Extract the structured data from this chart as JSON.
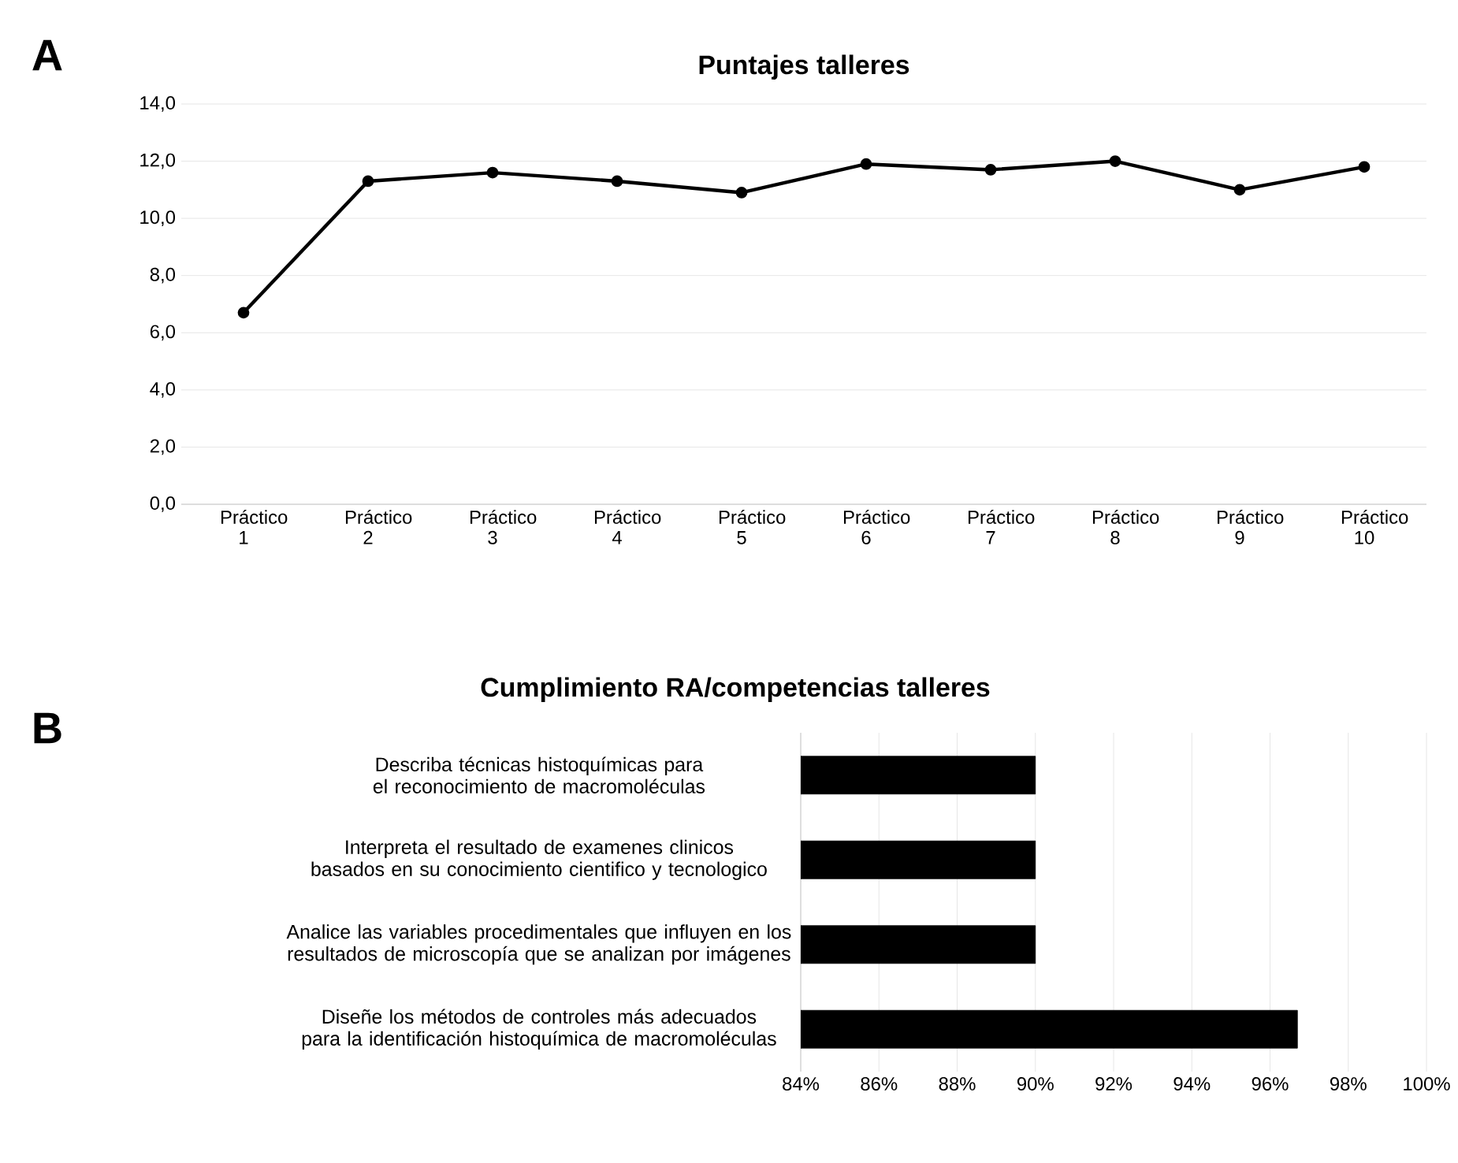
{
  "chart_data": [
    {
      "type": "line",
      "title": "Puntajes talleres",
      "annotations": [
        "A"
      ],
      "categories": [
        "Práctico 1",
        "Práctico 2",
        "Práctico 3",
        "Práctico 4",
        "Práctico 5",
        "Práctico 6",
        "Práctico 7",
        "Práctico 8",
        "Práctico 9",
        "Práctico 10"
      ],
      "series": [
        {
          "color": "#000000",
          "values": [
            6.7,
            11.3,
            11.6,
            11.3,
            10.9,
            11.9,
            11.7,
            12.0,
            11.0,
            11.8
          ]
        }
      ],
      "ylim": [
        0,
        14
      ],
      "yticks": [
        {
          "value": 0,
          "label": "0,0"
        },
        {
          "value": 2,
          "label": "2,0"
        },
        {
          "value": 4,
          "label": "4,0"
        },
        {
          "value": 6,
          "label": "6,0"
        },
        {
          "value": 8,
          "label": "8,0"
        },
        {
          "value": 10,
          "label": "10,0"
        },
        {
          "value": 12,
          "label": "12,0"
        },
        {
          "value": 14,
          "label": "14,0"
        }
      ],
      "grid": "y",
      "marker": "circle",
      "line_style": "solid"
    },
    {
      "type": "bar",
      "orientation": "horizontal",
      "title": "Cumplimiento RA/competencias talleres",
      "annotations": [
        "B"
      ],
      "categories": [
        "Describa técnicas histoquímicas para el reconocimiento de macromoléculas",
        "Interpreta el resultado de examenes clinicos basados en su conocimiento cientifico y tecnologico",
        "Analice las variables procedimentales que influyen en los resultados de microscopía que se analizan por imágenes",
        "Diseñe los métodos de controles más adecuados para la identificación histoquímica de macromoléculas"
      ],
      "series": [
        {
          "color": "#000000",
          "values": [
            90,
            90,
            90,
            96.7
          ]
        }
      ],
      "xlim": [
        84,
        100
      ],
      "xticks": [
        {
          "value": 84,
          "label": "84%"
        },
        {
          "value": 86,
          "label": "86%"
        },
        {
          "value": 88,
          "label": "88%"
        },
        {
          "value": 90,
          "label": "90%"
        },
        {
          "value": 92,
          "label": "92%"
        },
        {
          "value": 94,
          "label": "94%"
        },
        {
          "value": 96,
          "label": "96%"
        },
        {
          "value": 98,
          "label": "98%"
        },
        {
          "value": 100,
          "label": "100%"
        }
      ],
      "grid": "x"
    }
  ]
}
